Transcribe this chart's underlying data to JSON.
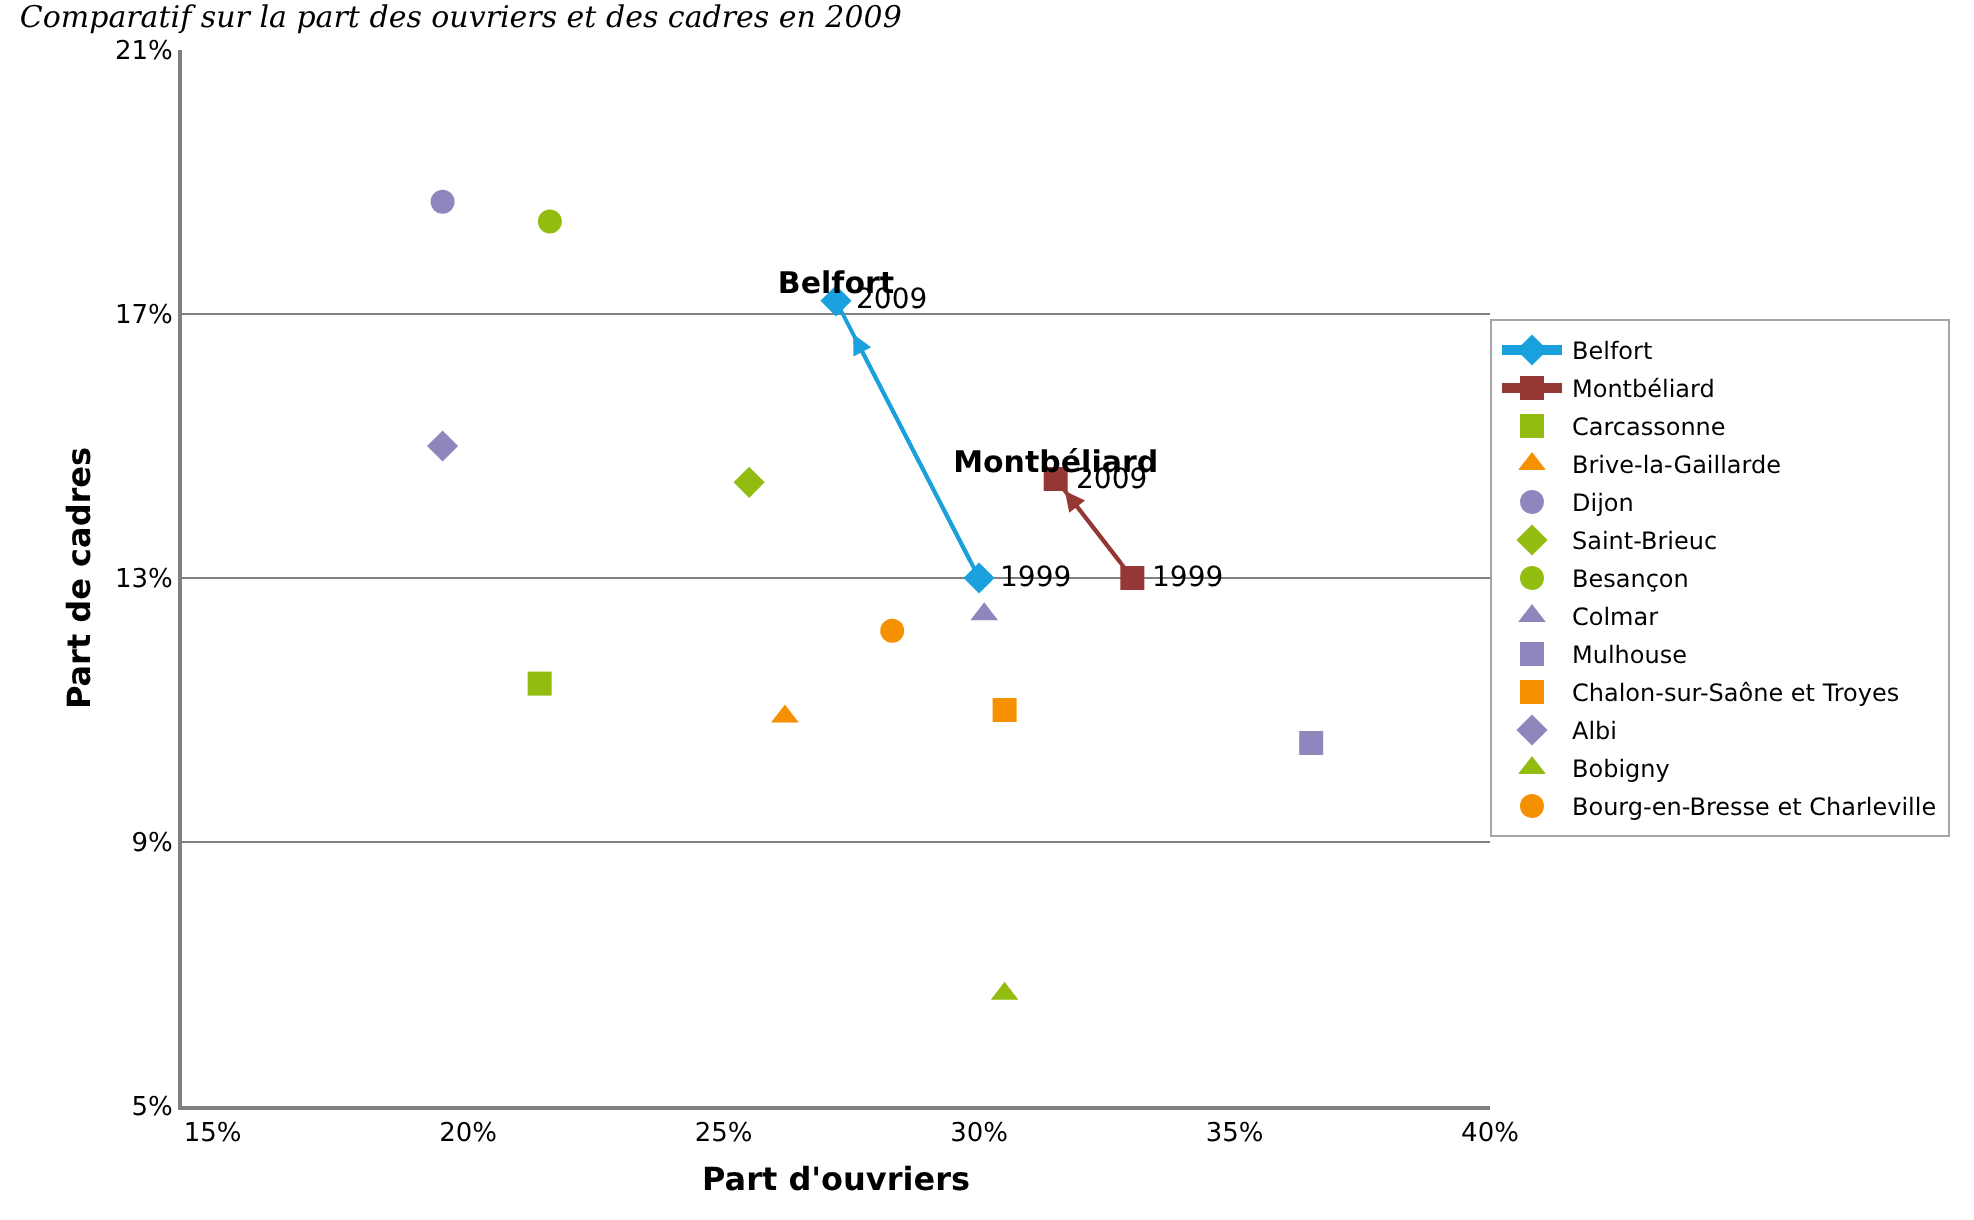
{
  "chart_data": {
    "type": "scatter",
    "title": "Comparatif sur la part des ouvriers et des cadres en 2009",
    "xlabel": "Part d'ouvriers",
    "ylabel": "Part de cadres",
    "xlim": [
      14.4,
      40
    ],
    "xticks": [
      {
        "value": 15,
        "label": "15%"
      },
      {
        "value": 20,
        "label": "20%"
      },
      {
        "value": 25,
        "label": "25%"
      },
      {
        "value": 30,
        "label": "30%"
      },
      {
        "value": 35,
        "label": "35%"
      },
      {
        "value": 40,
        "label": "40%"
      }
    ],
    "ylim": [
      5,
      21
    ],
    "yticks": [
      {
        "value": 5,
        "label": "5%"
      },
      {
        "value": 9,
        "label": "9%"
      },
      {
        "value": 13,
        "label": "13%"
      },
      {
        "value": 17,
        "label": "17%"
      },
      {
        "value": 21,
        "label": "21%"
      }
    ],
    "grid": "y",
    "legend": "right",
    "series": [
      {
        "name": "Belfort",
        "type": "line",
        "marker": "diamond",
        "color": "#1aa0dc",
        "x": [
          30.0,
          27.2
        ],
        "values": [
          13.0,
          17.2
        ]
      },
      {
        "name": "Montbéliard",
        "type": "line",
        "marker": "square",
        "color": "#953735",
        "x": [
          33.0,
          31.5
        ],
        "values": [
          13.0,
          14.5
        ]
      },
      {
        "name": "Carcassonne",
        "marker": "square",
        "color": "#92bc0f",
        "x": [
          21.4
        ],
        "values": [
          11.4
        ]
      },
      {
        "name": "Brive-la-Gaillarde",
        "marker": "triangle",
        "color": "#f59100",
        "x": [
          26.2
        ],
        "values": [
          10.9
        ]
      },
      {
        "name": "Dijon",
        "marker": "circle",
        "color": "#8e86bd",
        "x": [
          19.5
        ],
        "values": [
          18.7
        ]
      },
      {
        "name": "Saint-Brieuc",
        "marker": "diamond",
        "color": "#92bc0f",
        "x": [
          25.5
        ],
        "values": [
          14.45
        ]
      },
      {
        "name": "Besançon",
        "marker": "circle",
        "color": "#92bc0f",
        "x": [
          21.6
        ],
        "values": [
          18.4
        ]
      },
      {
        "name": "Colmar",
        "marker": "triangle",
        "color": "#8e86bd",
        "x": [
          30.1
        ],
        "values": [
          12.45
        ]
      },
      {
        "name": "Mulhouse",
        "marker": "square",
        "color": "#8e86bd",
        "x": [
          36.5
        ],
        "values": [
          10.5
        ]
      },
      {
        "name": "Chalon-sur-Saône et Troyes",
        "marker": "square",
        "color": "#f59100",
        "x": [
          30.5
        ],
        "values": [
          11.0
        ]
      },
      {
        "name": "Albi",
        "marker": "diamond",
        "color": "#8e86bd",
        "x": [
          19.5
        ],
        "values": [
          15.0
        ]
      },
      {
        "name": "Bobigny",
        "marker": "triangle",
        "color": "#92bc0f",
        "x": [
          30.5
        ],
        "values": [
          6.7
        ]
      },
      {
        "name": "Bourg-en-Bresse et Charleville",
        "marker": "circle",
        "color": "#f59100",
        "x": [
          28.3
        ],
        "values": [
          12.2
        ]
      }
    ],
    "annotations": [
      {
        "text": "1999",
        "x": 30.0,
        "y": 13.0
      },
      {
        "text": "2009",
        "x": 27.2,
        "y": 17.2
      },
      {
        "text": "1999",
        "x": 33.0,
        "y": 13.0
      },
      {
        "text": "2009",
        "x": 31.5,
        "y": 14.5
      }
    ]
  }
}
